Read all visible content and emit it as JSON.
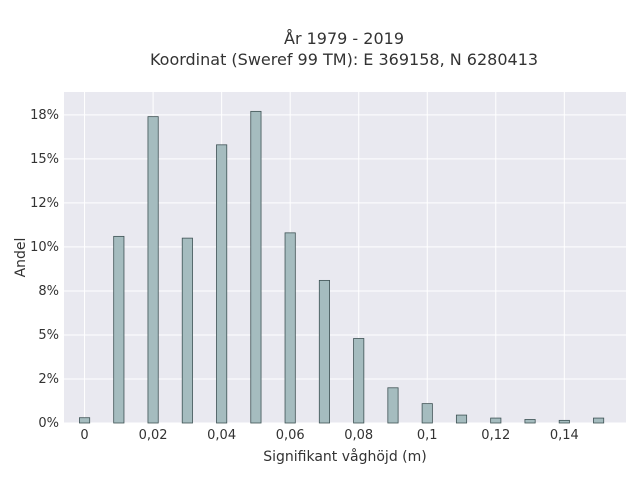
{
  "chart_data": {
    "type": "bar",
    "title": "År 1979 - 2019",
    "subtitle": "Koordinat (Sweref 99 TM): E 369158, N 6280413",
    "xlabel": "Signifikant våghöjd (m)",
    "ylabel": "Andel",
    "x": [
      0,
      0.01,
      0.02,
      0.03,
      0.04,
      0.05,
      0.06,
      0.07,
      0.08,
      0.09,
      0.1,
      0.11,
      0.12,
      0.13,
      0.14,
      0.15
    ],
    "values": [
      0.3,
      10.6,
      17.4,
      10.5,
      15.8,
      17.7,
      10.8,
      8.1,
      4.8,
      2.0,
      1.1,
      0.45,
      0.28,
      0.2,
      0.15,
      0.28
    ],
    "xlim": [
      -0.006,
      0.158
    ],
    "ylim": [
      0,
      18.8
    ],
    "xticks": [
      0,
      0.02,
      0.04,
      0.06,
      0.08,
      0.1,
      0.12,
      0.14
    ],
    "xtick_labels": [
      "0",
      "0,02",
      "0,04",
      "0,06",
      "0,08",
      "0,1",
      "0,12",
      "0,14"
    ],
    "yticks": [
      0,
      2.5,
      5,
      7.5,
      10,
      12.5,
      15,
      17.5
    ],
    "ytick_labels": [
      "0%",
      "2%",
      "5%",
      "8%",
      "10%",
      "12%",
      "15%",
      "18%"
    ],
    "bar_width": 0.003,
    "grid": true,
    "colors": {
      "bar": "#a5bcbf",
      "bar_edge": "#3e5254",
      "plot_bg": "#e9e9f0",
      "grid": "#ffffff"
    }
  }
}
